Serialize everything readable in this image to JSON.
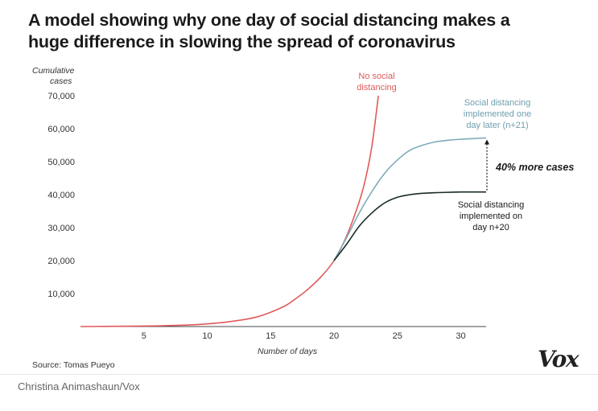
{
  "title": "A model showing why one day of social distancing makes a huge difference in slowing the spread of coronavirus",
  "source": "Source: Tomas Pueyo",
  "credit": "Christina Animashaun/Vox",
  "logo": "Vox",
  "chart_data": {
    "type": "line",
    "title": "A model showing why one day of social distancing makes a huge difference in slowing the spread of coronavirus",
    "xlabel": "Number of days",
    "ylabel": "Cumulative cases",
    "xlim": [
      0,
      32
    ],
    "ylim": [
      0,
      70000
    ],
    "xticks": [
      5,
      10,
      15,
      20,
      25,
      30
    ],
    "yticks": [
      10000,
      20000,
      30000,
      40000,
      50000,
      60000,
      70000
    ],
    "ytick_labels": [
      "10,000",
      "20,000",
      "30,000",
      "40,000",
      "50,000",
      "60,000",
      "70,000"
    ],
    "grid": false,
    "series": [
      {
        "name": "No social distancing",
        "color": "#e05a5a",
        "x": [
          0,
          2,
          4,
          6,
          8,
          10,
          12,
          14,
          16,
          17,
          18,
          19,
          20,
          21,
          22,
          22.5,
          23,
          23.5
        ],
        "y": [
          0,
          50,
          100,
          200,
          400,
          800,
          1600,
          3000,
          6000,
          8500,
          11500,
          15200,
          20000,
          27500,
          38000,
          45000,
          55000,
          70000
        ]
      },
      {
        "name": "Social distancing implemented one day later (n+21)",
        "color": "#7eacbb",
        "x": [
          20,
          21,
          22,
          23,
          24,
          25,
          26,
          27,
          28,
          29,
          30,
          31,
          32
        ],
        "y": [
          20000,
          27000,
          34500,
          41000,
          46500,
          50500,
          53500,
          55000,
          56000,
          56500,
          56800,
          57000,
          57200
        ]
      },
      {
        "name": "Social distancing implemented on day n+20",
        "color": "#1a2a2a",
        "x": [
          20,
          21,
          22,
          23,
          24,
          25,
          26,
          27,
          28,
          29,
          30,
          31,
          32
        ],
        "y": [
          20000,
          25000,
          30500,
          34500,
          37500,
          39200,
          40000,
          40400,
          40600,
          40700,
          40800,
          40800,
          40800
        ]
      }
    ],
    "annotations": [
      {
        "text": "40% more cases"
      }
    ]
  },
  "labels": {
    "no_sd": [
      "No social",
      "distancing"
    ],
    "later": [
      "Social distancing",
      "implemented one",
      "day later (n+21)"
    ],
    "on_day": [
      "Social distancing",
      "implemented on",
      "day n+20"
    ],
    "ylabel_lines": [
      "Cumulative",
      "cases"
    ],
    "more_cases": "40% more cases"
  }
}
